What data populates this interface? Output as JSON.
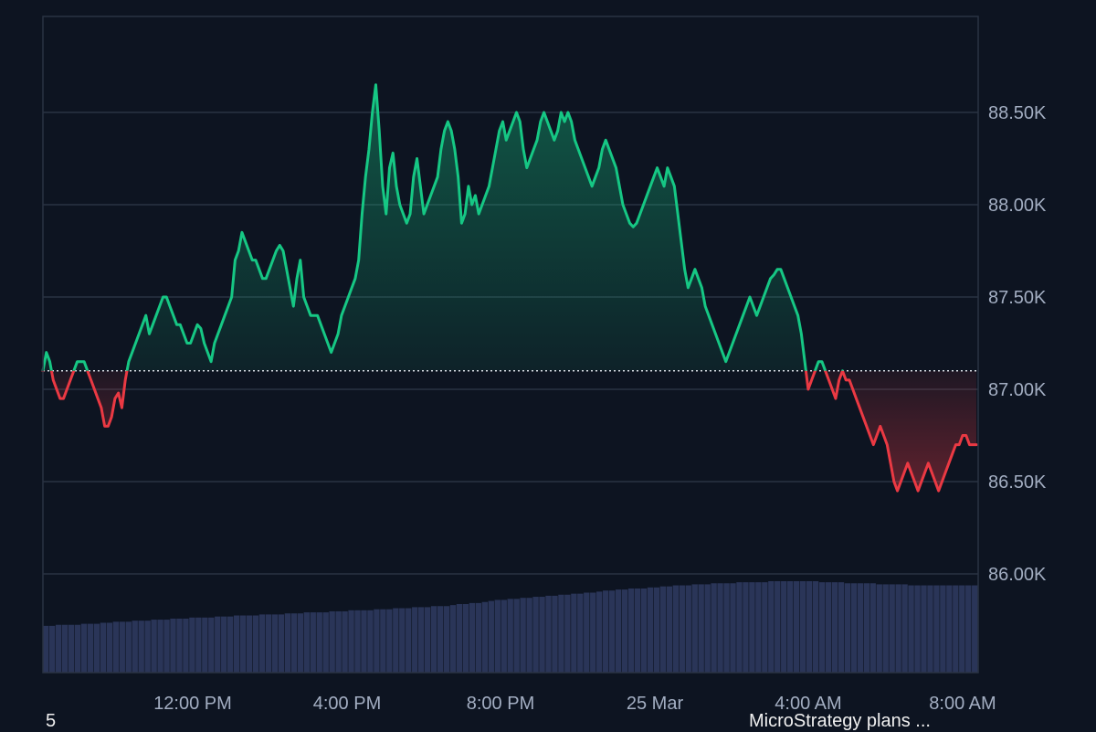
{
  "chart_data": {
    "type": "area",
    "title": "",
    "xlabel": "",
    "ylabel": "",
    "reference_price": 87100,
    "ylim": [
      85500,
      89000
    ],
    "y_ticks": [
      86000,
      86500,
      87000,
      87500,
      88000,
      88500
    ],
    "y_tick_labels": [
      "86.00K",
      "86.50K",
      "87.00K",
      "87.50K",
      "88.00K",
      "88.50K"
    ],
    "x_tick_labels": [
      "12:00 PM",
      "4:00 PM",
      "8:00 PM",
      "25 Mar",
      "4:00 AM",
      "8:00 AM"
    ],
    "grid": true,
    "colors": {
      "up": "#16c784",
      "down": "#ea3943",
      "background": "#0d1421",
      "grid": "#2a3343",
      "volume": "#2a3558",
      "axis_text": "#a3aec2"
    },
    "price_series": {
      "x_range": [
        "~8:00 AM 24 Mar",
        "~8:30 AM 25 Mar"
      ],
      "values": [
        87100,
        87200,
        87150,
        87050,
        87000,
        86950,
        86950,
        87000,
        87050,
        87100,
        87150,
        87150,
        87150,
        87100,
        87050,
        87000,
        86950,
        86900,
        86800,
        86800,
        86850,
        86950,
        86980,
        86900,
        87050,
        87150,
        87200,
        87250,
        87300,
        87350,
        87400,
        87300,
        87350,
        87400,
        87450,
        87500,
        87500,
        87450,
        87400,
        87350,
        87350,
        87300,
        87250,
        87250,
        87300,
        87350,
        87330,
        87250,
        87200,
        87150,
        87250,
        87300,
        87350,
        87400,
        87450,
        87500,
        87700,
        87750,
        87850,
        87800,
        87750,
        87700,
        87700,
        87650,
        87600,
        87600,
        87650,
        87700,
        87750,
        87780,
        87750,
        87650,
        87550,
        87450,
        87600,
        87700,
        87500,
        87450,
        87400,
        87400,
        87400,
        87350,
        87300,
        87250,
        87200,
        87250,
        87300,
        87400,
        87450,
        87500,
        87550,
        87600,
        87700,
        87950,
        88150,
        88300,
        88500,
        88650,
        88400,
        88100,
        87950,
        88200,
        88280,
        88100,
        88000,
        87950,
        87900,
        87950,
        88150,
        88250,
        88100,
        87950,
        88000,
        88050,
        88100,
        88150,
        88300,
        88400,
        88450,
        88400,
        88300,
        88150,
        87900,
        87950,
        88100,
        88000,
        88050,
        87950,
        88000,
        88050,
        88100,
        88200,
        88300,
        88400,
        88450,
        88350,
        88400,
        88450,
        88500,
        88450,
        88300,
        88200,
        88250,
        88300,
        88350,
        88450,
        88500,
        88450,
        88400,
        88350,
        88400,
        88500,
        88450,
        88500,
        88450,
        88350,
        88300,
        88250,
        88200,
        88150,
        88100,
        88150,
        88200,
        88300,
        88350,
        88300,
        88250,
        88200,
        88100,
        88000,
        87950,
        87900,
        87880,
        87900,
        87950,
        88000,
        88050,
        88100,
        88150,
        88200,
        88150,
        88100,
        88200,
        88150,
        88100,
        87950,
        87800,
        87650,
        87550,
        87600,
        87650,
        87600,
        87550,
        87450,
        87400,
        87350,
        87300,
        87250,
        87200,
        87150,
        87200,
        87250,
        87300,
        87350,
        87400,
        87450,
        87500,
        87450,
        87400,
        87450,
        87500,
        87550,
        87600,
        87620,
        87650,
        87650,
        87600,
        87550,
        87500,
        87450,
        87400,
        87300,
        87150,
        87000,
        87050,
        87100,
        87150,
        87150,
        87100,
        87050,
        87000,
        86950,
        87050,
        87100,
        87050,
        87050,
        87000,
        86950,
        86900,
        86850,
        86800,
        86750,
        86700,
        86750,
        86800,
        86750,
        86700,
        86600,
        86500,
        86450,
        86500,
        86550,
        86600,
        86550,
        86500,
        86450,
        86500,
        86550,
        86600,
        86550,
        86500,
        86450,
        86500,
        86550,
        86600,
        86650,
        86700,
        86700,
        86750,
        86750,
        86700,
        86700,
        86700
      ]
    },
    "volume_series": {
      "values": [
        0.45,
        0.45,
        0.46,
        0.46,
        0.46,
        0.46,
        0.47,
        0.47,
        0.47,
        0.48,
        0.48,
        0.49,
        0.49,
        0.49,
        0.5,
        0.5,
        0.5,
        0.51,
        0.51,
        0.51,
        0.52,
        0.52,
        0.52,
        0.53,
        0.53,
        0.53,
        0.53,
        0.54,
        0.54,
        0.54,
        0.55,
        0.55,
        0.55,
        0.55,
        0.56,
        0.56,
        0.56,
        0.56,
        0.57,
        0.57,
        0.57,
        0.58,
        0.58,
        0.58,
        0.58,
        0.59,
        0.59,
        0.59,
        0.6,
        0.6,
        0.6,
        0.6,
        0.61,
        0.61,
        0.61,
        0.62,
        0.62,
        0.62,
        0.63,
        0.63,
        0.63,
        0.64,
        0.64,
        0.64,
        0.65,
        0.66,
        0.66,
        0.67,
        0.67,
        0.68,
        0.69,
        0.7,
        0.7,
        0.71,
        0.71,
        0.72,
        0.72,
        0.73,
        0.73,
        0.74,
        0.74,
        0.75,
        0.75,
        0.76,
        0.76,
        0.77,
        0.77,
        0.78,
        0.79,
        0.79,
        0.8,
        0.8,
        0.81,
        0.81,
        0.81,
        0.82,
        0.82,
        0.83,
        0.83,
        0.84,
        0.84,
        0.84,
        0.85,
        0.85,
        0.85,
        0.86,
        0.86,
        0.86,
        0.86,
        0.87,
        0.87,
        0.87,
        0.87,
        0.87,
        0.88,
        0.88,
        0.88,
        0.88,
        0.88,
        0.88,
        0.88,
        0.88,
        0.87,
        0.87,
        0.87,
        0.87,
        0.86,
        0.86,
        0.86,
        0.86,
        0.86,
        0.85,
        0.85,
        0.85,
        0.85,
        0.85,
        0.84,
        0.84,
        0.84,
        0.84,
        0.84,
        0.84,
        0.84,
        0.84,
        0.84,
        0.84,
        0.84
      ]
    }
  },
  "footer": {
    "left_text": "5",
    "right_text": "MicroStrategy plans ..."
  }
}
